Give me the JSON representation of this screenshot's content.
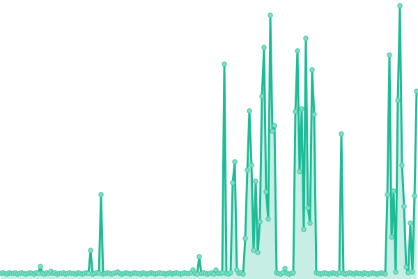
{
  "chart_data": {
    "type": "line",
    "title": "",
    "xlabel": "",
    "ylabel": "",
    "markers": true,
    "grid": false,
    "axes_visible": false,
    "legend": "none",
    "colors": {
      "line": "#1dbc96",
      "marker_fill": "#80dcc3",
      "marker_stroke": "#3cc9a4"
    },
    "ylim": [
      0,
      385
    ],
    "values": [
      1,
      2,
      1,
      0,
      2,
      1,
      1,
      2,
      0,
      1,
      2,
      1,
      0,
      1,
      2,
      1,
      0,
      2,
      1,
      11,
      1,
      0,
      2,
      1,
      4,
      1,
      2,
      0,
      1,
      1,
      2,
      0,
      1,
      2,
      1,
      1,
      0,
      2,
      1,
      0,
      1,
      2,
      1,
      34,
      0,
      1,
      2,
      1,
      114,
      0,
      1,
      2,
      1,
      0,
      1,
      2,
      3,
      1,
      0,
      1,
      2,
      1,
      0,
      1,
      2,
      1,
      1,
      0,
      2,
      1,
      0,
      1,
      2,
      1,
      0,
      1,
      2,
      1,
      1,
      0,
      1,
      2,
      0,
      1,
      2,
      1,
      0,
      1,
      2,
      1,
      1,
      2,
      6,
      1,
      0,
      25,
      1,
      2,
      1,
      0,
      1,
      2,
      0,
      6,
      1,
      1,
      2,
      301,
      1,
      0,
      2,
      131,
      161,
      6,
      1,
      2,
      0,
      51,
      149,
      234,
      156,
      34,
      133,
      31,
      75,
      255,
      325,
      118,
      79,
      371,
      205,
      213,
      2,
      1,
      0,
      2,
      8,
      1,
      0,
      1,
      2,
      233,
      320,
      147,
      237,
      64,
      338,
      95,
      73,
      293,
      229,
      2,
      1,
      0,
      1,
      2,
      1,
      0,
      1,
      2,
      1,
      0,
      2,
      201,
      1,
      0,
      1,
      2,
      1,
      0,
      2,
      1,
      1,
      0,
      2,
      1,
      0,
      1,
      2,
      1,
      0,
      1,
      2,
      1,
      0,
      114,
      314,
      53,
      119,
      3,
      249,
      385,
      156,
      97,
      10,
      2,
      73,
      3,
      112,
      262
    ]
  }
}
